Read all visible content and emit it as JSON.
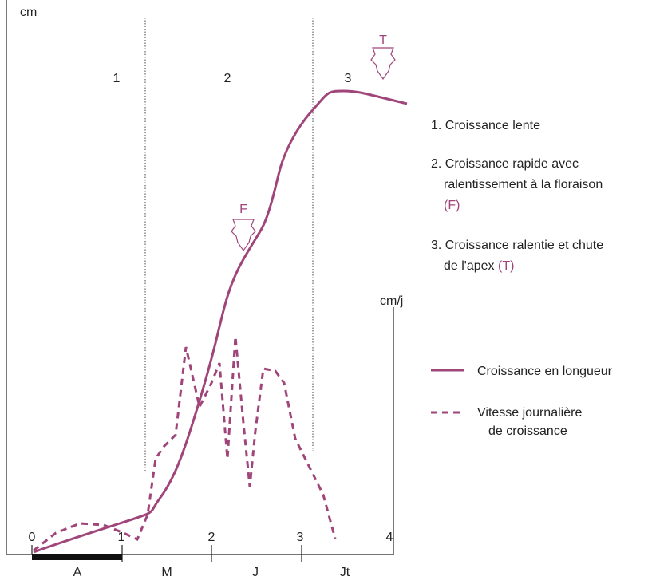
{
  "axes": {
    "y_label": "cm",
    "y2_label": "cm/j",
    "x_ticks": [
      "0",
      "1",
      "2",
      "3",
      "4"
    ],
    "periods": [
      "A",
      "M",
      "J",
      "Jt"
    ]
  },
  "phases": [
    "1",
    "2",
    "3"
  ],
  "markers": {
    "flowering": "F",
    "apex": "T"
  },
  "notes": [
    {
      "lines": [
        "1. Croissance lente"
      ]
    },
    {
      "lines": [
        "2. Croissance rapide avec",
        "ralentissement à la floraison"
      ],
      "marker": "(F)"
    },
    {
      "lines": [
        "3. Croissance ralentie et chute",
        "de l'apex"
      ],
      "marker": "(T)"
    }
  ],
  "legend": [
    {
      "lines": [
        "Croissance en longueur"
      ]
    },
    {
      "lines": [
        "Vitesse journalière",
        "de croissance"
      ]
    }
  ]
}
